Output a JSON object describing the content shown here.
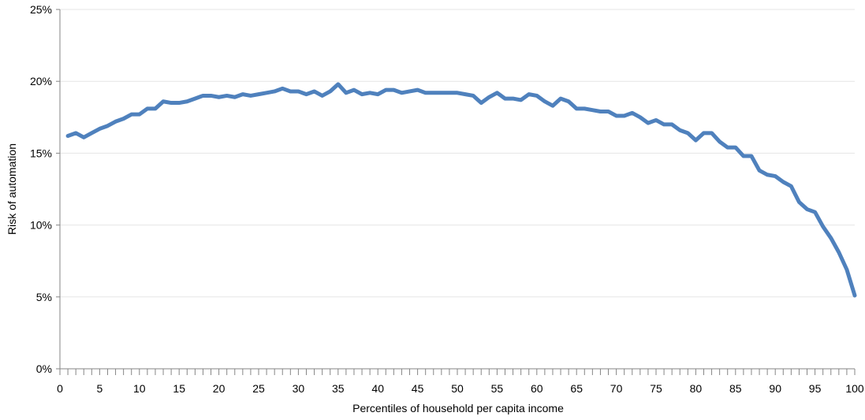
{
  "chart_data": {
    "type": "line",
    "title": "",
    "xlabel": "Percentiles of household per capita income",
    "ylabel": "Risk of automation",
    "xlim": [
      0,
      100
    ],
    "ylim": [
      0,
      25
    ],
    "x_ticks": [
      "0",
      "5",
      "10",
      "15",
      "20",
      "25",
      "30",
      "35",
      "40",
      "45",
      "50",
      "55",
      "60",
      "65",
      "70",
      "75",
      "80",
      "85",
      "90",
      "95",
      "100"
    ],
    "y_ticks": [
      "0%",
      "5%",
      "10%",
      "15%",
      "20%",
      "25%"
    ],
    "grid": "horizontal",
    "legend": "none",
    "series": [
      {
        "color": "#4f81bd",
        "x": [
          1,
          2,
          3,
          4,
          5,
          6,
          7,
          8,
          9,
          10,
          11,
          12,
          13,
          14,
          15,
          16,
          17,
          18,
          19,
          20,
          21,
          22,
          23,
          24,
          25,
          26,
          27,
          28,
          29,
          30,
          31,
          32,
          33,
          34,
          35,
          36,
          37,
          38,
          39,
          40,
          41,
          42,
          43,
          44,
          45,
          46,
          47,
          48,
          49,
          50,
          51,
          52,
          53,
          54,
          55,
          56,
          57,
          58,
          59,
          60,
          61,
          62,
          63,
          64,
          65,
          66,
          67,
          68,
          69,
          70,
          71,
          72,
          73,
          74,
          75,
          76,
          77,
          78,
          79,
          80,
          81,
          82,
          83,
          84,
          85,
          86,
          87,
          88,
          89,
          90,
          91,
          92,
          93,
          94,
          95,
          96,
          97,
          98,
          99,
          100
        ],
        "values": [
          16.2,
          16.4,
          16.1,
          16.4,
          16.7,
          16.9,
          17.2,
          17.4,
          17.7,
          17.7,
          18.1,
          18.1,
          18.6,
          18.5,
          18.5,
          18.6,
          18.8,
          19.0,
          19.0,
          18.9,
          19.0,
          18.9,
          19.1,
          19.0,
          19.1,
          19.2,
          19.3,
          19.5,
          19.3,
          19.3,
          19.1,
          19.3,
          19.0,
          19.3,
          19.8,
          19.2,
          19.4,
          19.1,
          19.2,
          19.1,
          19.4,
          19.4,
          19.2,
          19.3,
          19.4,
          19.2,
          19.2,
          19.2,
          19.2,
          19.2,
          19.1,
          19.0,
          18.5,
          18.9,
          19.2,
          18.8,
          18.8,
          18.7,
          19.1,
          19.0,
          18.6,
          18.3,
          18.8,
          18.6,
          18.1,
          18.1,
          18.0,
          17.9,
          17.9,
          17.6,
          17.6,
          17.8,
          17.5,
          17.1,
          17.3,
          17.0,
          17.0,
          16.6,
          16.4,
          15.9,
          16.4,
          16.4,
          15.8,
          15.4,
          15.4,
          14.8,
          14.8,
          13.8,
          13.5,
          13.4,
          13.0,
          12.7,
          11.6,
          11.1,
          10.9,
          9.9,
          9.1,
          8.1,
          6.9,
          5.1
        ]
      }
    ]
  }
}
